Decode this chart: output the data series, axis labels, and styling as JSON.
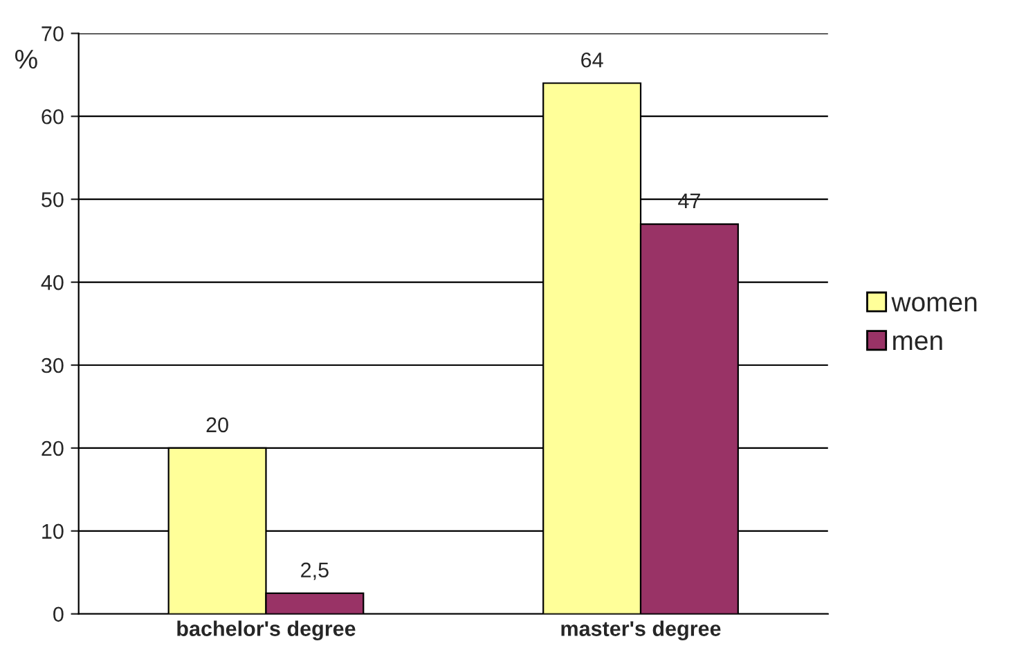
{
  "chart_data": {
    "type": "bar",
    "ylabel": "%",
    "categories": [
      "bachelor's degree",
      "master's degree"
    ],
    "series": [
      {
        "name": "women",
        "color": "#ffff99",
        "values": [
          20,
          64
        ],
        "value_labels": [
          "20",
          "64"
        ]
      },
      {
        "name": "men",
        "color": "#993366",
        "values": [
          2.5,
          47
        ],
        "value_labels": [
          "2,5",
          "47"
        ]
      }
    ],
    "ylim": [
      0,
      70
    ],
    "yticks": [
      0,
      10,
      20,
      30,
      40,
      50,
      60,
      70
    ],
    "grid": "y",
    "legend": "right"
  }
}
